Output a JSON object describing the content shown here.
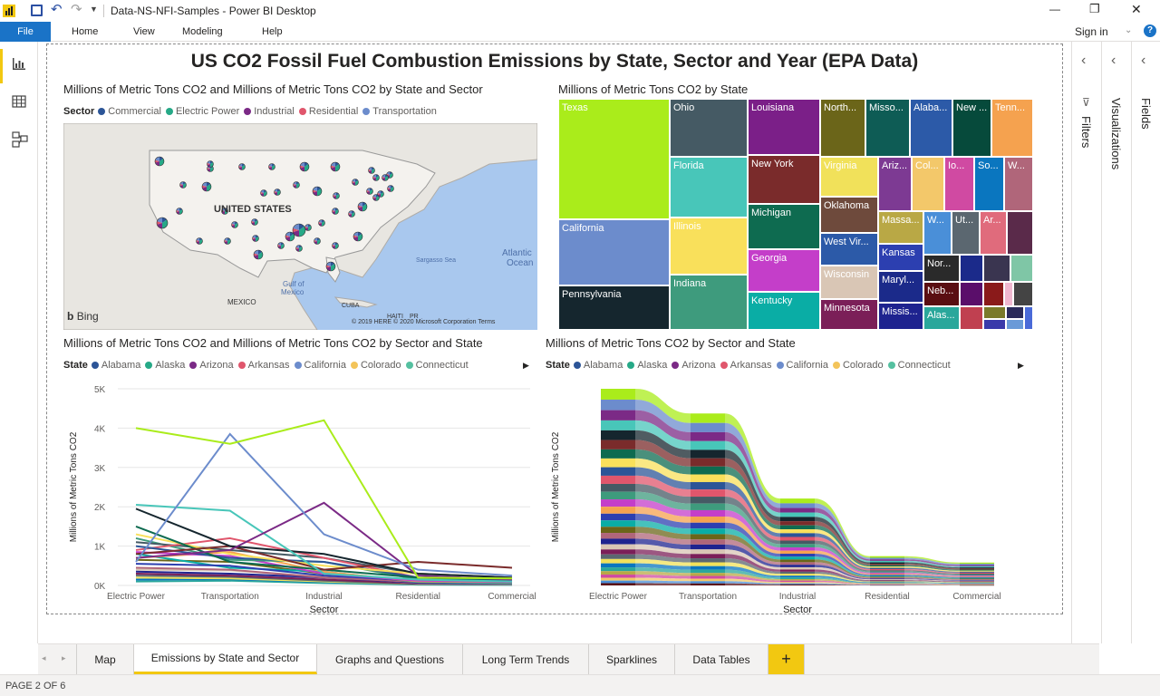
{
  "window": {
    "title": "Data-NS-NFI-Samples - Power BI Desktop",
    "controls": {
      "minimize": "—",
      "restore": "❐",
      "close": "✕"
    }
  },
  "ribbon": {
    "file": "File",
    "tabs": [
      "Home",
      "View",
      "Modeling",
      "Help"
    ],
    "sign_in": "Sign in",
    "help": "?"
  },
  "report": {
    "title": "US CO2 Fossil Fuel Combustion Emissions by State, Sector and Year (EPA Data)"
  },
  "map_visual": {
    "title": "Millions of Metric Tons CO2 and Millions of Metric Tons CO2 by State and Sector",
    "legend_title": "Sector",
    "legend": [
      {
        "label": "Commercial",
        "color": "#2c5597"
      },
      {
        "label": "Electric Power",
        "color": "#26a987"
      },
      {
        "label": "Industrial",
        "color": "#7b2a86"
      },
      {
        "label": "Residential",
        "color": "#e0566c"
      },
      {
        "label": "Transportation",
        "color": "#6c8ccc"
      }
    ],
    "labels": {
      "country": "UNITED STATES",
      "atlantic": "Atlantic",
      "ocean": "Ocean",
      "sargasso": "Sargasso Sea",
      "gulf1": "Gulf of",
      "gulf2": "Mexico",
      "mexico": "MEXICO",
      "cuba": "CUBA",
      "haiti": "HAITI",
      "pr": "PR"
    },
    "bing": "Bing",
    "copyright": "© 2019 HERE © 2020 Microsoft Corporation Terms"
  },
  "treemap_visual": {
    "title": "Millions of Metric Tons CO2 by State",
    "tiles": [
      {
        "label": "Texas",
        "color": "#aaec1b"
      },
      {
        "label": "California",
        "color": "#6c8ccc"
      },
      {
        "label": "Pennsylvania",
        "color": "#15262e"
      },
      {
        "label": "Ohio",
        "color": "#455a64"
      },
      {
        "label": "Florida",
        "color": "#48c6b9"
      },
      {
        "label": "Illinois",
        "color": "#f9e05b"
      },
      {
        "label": "Indiana",
        "color": "#3e9b7d"
      },
      {
        "label": "Louisiana",
        "color": "#7b1f88"
      },
      {
        "label": "New York",
        "color": "#7a2b2b"
      },
      {
        "label": "Michigan",
        "color": "#0e6b50"
      },
      {
        "label": "Georgia",
        "color": "#c43ec9"
      },
      {
        "label": "Kentucky",
        "color": "#0aada5"
      },
      {
        "label": "North...",
        "color": "#6b6519"
      },
      {
        "label": "Misso...",
        "color": "#0e5c55"
      },
      {
        "label": "Alaba...",
        "color": "#2c5aa8"
      },
      {
        "label": "New ...",
        "color": "#064a3b"
      },
      {
        "label": "Tenn...",
        "color": "#f5a24f"
      },
      {
        "label": "Virginia",
        "color": "#f1e15a"
      },
      {
        "label": "Oklahoma",
        "color": "#6e4a3c"
      },
      {
        "label": "West Vir...",
        "color": "#2c5aa8"
      },
      {
        "label": "Wisconsin",
        "color": "#d9c6b5"
      },
      {
        "label": "Minnesota",
        "color": "#7b1f58"
      },
      {
        "label": "Ariz...",
        "color": "#7d3a93"
      },
      {
        "label": "Col...",
        "color": "#f3c86a"
      },
      {
        "label": "Io...",
        "color": "#d04aa2"
      },
      {
        "label": "So...",
        "color": "#0a76bf"
      },
      {
        "label": "W...",
        "color": "#b0667a"
      },
      {
        "label": "Massa...",
        "color": "#b9a845"
      },
      {
        "label": "W...",
        "color": "#4a8fd8"
      },
      {
        "label": "Ut...",
        "color": "#5b6770"
      },
      {
        "label": "Ar...",
        "color": "#e06b7c"
      },
      {
        "label": "Kansas",
        "color": "#2c3fb0"
      },
      {
        "label": "Maryl...",
        "color": "#1b2a8a"
      },
      {
        "label": "Missis...",
        "color": "#1e238f"
      },
      {
        "label": "Nor...",
        "color": "#2a2a2a"
      },
      {
        "label": "Neb...",
        "color": "#5a0e12"
      },
      {
        "label": "Alas...",
        "color": "#2aa79b"
      }
    ]
  },
  "line_visual": {
    "title": "Millions of Metric Tons CO2 and Millions of Metric Tons CO2 by Sector and State",
    "legend_title": "State",
    "legend": [
      {
        "label": "Alabama",
        "color": "#2c5597"
      },
      {
        "label": "Alaska",
        "color": "#26a987"
      },
      {
        "label": "Arizona",
        "color": "#7b2a86"
      },
      {
        "label": "Arkansas",
        "color": "#e0566c"
      },
      {
        "label": "California",
        "color": "#6c8ccc"
      },
      {
        "label": "Colorado",
        "color": "#f3c45a"
      },
      {
        "label": "Connecticut",
        "color": "#55c0a0"
      }
    ],
    "more_arrow": "▶"
  },
  "ribbon_visual": {
    "title": "Millions of Metric Tons CO2 by Sector and State",
    "legend_title": "State",
    "more_arrow": "▶"
  },
  "chart_data": [
    {
      "type": "line",
      "xlabel": "Sector",
      "ylabel": "Millions of Metric Tons CO2",
      "categories": [
        "Electric Power",
        "Transportation",
        "Industrial",
        "Residential",
        "Commercial"
      ],
      "yticks": [
        "0K",
        "1K",
        "2K",
        "3K",
        "4K",
        "5K"
      ],
      "ylim": [
        0,
        5000
      ],
      "series": [
        {
          "color": "#aaec1b",
          "values": [
            4000,
            3600,
            4200,
            200,
            180
          ]
        },
        {
          "color": "#6c8ccc",
          "values": [
            600,
            3850,
            1300,
            400,
            250
          ]
        },
        {
          "color": "#7b2a86",
          "values": [
            700,
            900,
            2100,
            250,
            150
          ]
        },
        {
          "color": "#48c6b9",
          "values": [
            2050,
            1900,
            300,
            150,
            100
          ]
        },
        {
          "color": "#15262e",
          "values": [
            1950,
            1000,
            800,
            300,
            200
          ]
        },
        {
          "color": "#7a2b2b",
          "values": [
            800,
            1000,
            400,
            600,
            450
          ]
        },
        {
          "color": "#0e6b50",
          "values": [
            1500,
            600,
            400,
            200,
            150
          ]
        },
        {
          "color": "#f9e05b",
          "values": [
            1300,
            800,
            500,
            300,
            200
          ]
        },
        {
          "color": "#2c5597",
          "values": [
            1000,
            700,
            600,
            200,
            100
          ]
        },
        {
          "color": "#e0566c",
          "values": [
            900,
            1200,
            700,
            200,
            150
          ]
        },
        {
          "color": "#455a64",
          "values": [
            1100,
            900,
            700,
            300,
            200
          ]
        },
        {
          "color": "#3e9b7d",
          "values": [
            1200,
            650,
            600,
            150,
            100
          ]
        },
        {
          "color": "#c43ec9",
          "values": [
            850,
            750,
            300,
            120,
            90
          ]
        },
        {
          "color": "#f5a24f",
          "values": [
            700,
            850,
            350,
            100,
            80
          ]
        },
        {
          "color": "#2c3fb0",
          "values": [
            550,
            500,
            250,
            120,
            80
          ]
        },
        {
          "color": "#0aada5",
          "values": [
            800,
            450,
            350,
            90,
            60
          ]
        },
        {
          "color": "#6b6519",
          "values": [
            650,
            600,
            300,
            100,
            70
          ]
        },
        {
          "color": "#b0667a",
          "values": [
            450,
            400,
            200,
            90,
            60
          ]
        },
        {
          "color": "#1e238f",
          "values": [
            350,
            300,
            200,
            70,
            50
          ]
        },
        {
          "color": "#d9c6b5",
          "values": [
            400,
            380,
            220,
            60,
            40
          ]
        },
        {
          "color": "#7b1f58",
          "values": [
            300,
            250,
            150,
            50,
            40
          ]
        },
        {
          "color": "#5b6770",
          "values": [
            250,
            220,
            120,
            40,
            30
          ]
        },
        {
          "color": "#f1e15a",
          "values": [
            200,
            180,
            100,
            35,
            25
          ]
        },
        {
          "color": "#0a76bf",
          "values": [
            150,
            160,
            90,
            30,
            20
          ]
        },
        {
          "color": "#2aa79b",
          "values": [
            100,
            120,
            60,
            20,
            15
          ]
        }
      ]
    },
    {
      "type": "area",
      "xlabel": "Sector",
      "ylabel": "Millions of Metric Tons CO2",
      "categories": [
        "Electric Power",
        "Transportation",
        "Industrial",
        "Residential",
        "Commercial"
      ],
      "totals": [
        2150,
        1880,
        950,
        320,
        250
      ],
      "band_colors": [
        "#aaec1b",
        "#6c8ccc",
        "#7b2a86",
        "#48c6b9",
        "#15262e",
        "#7a2b2b",
        "#0e6b50",
        "#f9e05b",
        "#2c5597",
        "#e0566c",
        "#455a64",
        "#3e9b7d",
        "#c43ec9",
        "#f5a24f",
        "#2c3fb0",
        "#0aada5",
        "#6b6519",
        "#b0667a",
        "#1e238f",
        "#d9c6b5",
        "#7b1f58",
        "#5b6770",
        "#f1e15a",
        "#0a76bf",
        "#2aa79b",
        "#b9a845",
        "#d04aa2",
        "#f3c86a",
        "#4a8fd8",
        "#5a0e12"
      ]
    }
  ],
  "panes": {
    "filters": "Filters",
    "visualizations": "Visualizations",
    "fields": "Fields"
  },
  "page_tabs": [
    {
      "label": "Map",
      "active": false
    },
    {
      "label": "Emissions by State and Sector",
      "active": true
    },
    {
      "label": "Graphs and Questions",
      "active": false
    },
    {
      "label": "Long Term Trends",
      "active": false
    },
    {
      "label": "Sparklines",
      "active": false
    },
    {
      "label": "Data Tables",
      "active": false
    }
  ],
  "add_page": "+",
  "status": "PAGE 2 OF 6"
}
